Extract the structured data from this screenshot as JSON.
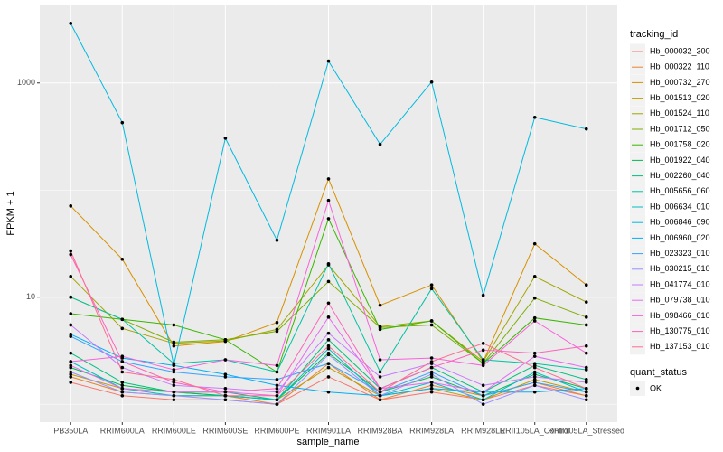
{
  "chart_data": {
    "type": "line",
    "x_label": "sample_name",
    "y_label": "FPKM + 1",
    "categories": [
      "PB350LA",
      "RRIM600LA",
      "RRIM600LE",
      "RRIM600SE",
      "RRIM600PE",
      "RRIM901LA",
      "RRIM928BA",
      "RRIM928LA",
      "RRIM928LE",
      "RRII105LA_Control",
      "RRII105LA_Stressed"
    ],
    "ylim": [
      0.68,
      5400
    ],
    "yticks": [
      10,
      1000
    ],
    "log_y": true,
    "grid": true,
    "legend_title": "tracking_id",
    "series": [
      {
        "name": "Hb_000032_300",
        "color": "#F8766D",
        "values": [
          1.6,
          1.2,
          1.1,
          1.1,
          1.0,
          1.8,
          1.1,
          1.3,
          1.1,
          1.5,
          1.2
        ]
      },
      {
        "name": "Hb_000322_110",
        "color": "#EA8331",
        "values": [
          1.8,
          1.3,
          1.2,
          1.2,
          1.0,
          2.4,
          1.1,
          1.5,
          1.2,
          1.6,
          1.2
        ]
      },
      {
        "name": "Hb_000732_270",
        "color": "#D89000",
        "values": [
          71,
          22.6,
          3.5,
          3.86,
          5.8,
          127,
          8.4,
          13,
          2.5,
          31.5,
          13
        ]
      },
      {
        "name": "Hb_001513_020",
        "color": "#C09B00",
        "values": [
          1.9,
          1.4,
          1.3,
          1.2,
          1.1,
          2.2,
          1.2,
          1.4,
          1.1,
          1.7,
          1.3
        ]
      },
      {
        "name": "Hb_001524_110",
        "color": "#A3A500",
        "values": [
          15.6,
          5.1,
          3.7,
          3.9,
          5.0,
          20,
          5.3,
          6.0,
          2.5,
          15.6,
          9.0
        ]
      },
      {
        "name": "Hb_001712_050",
        "color": "#7CAE00",
        "values": [
          10,
          6.2,
          3.8,
          4.0,
          4.8,
          14,
          5.2,
          5.5,
          2.4,
          9.8,
          6.5
        ]
      },
      {
        "name": "Hb_001758_020",
        "color": "#39B600",
        "values": [
          7,
          6.2,
          5.5,
          4.0,
          2.0,
          54,
          5.0,
          6.0,
          2.4,
          6.4,
          5.5
        ]
      },
      {
        "name": "Hb_001922_040",
        "color": "#00BB4E",
        "values": [
          2.2,
          1.5,
          1.3,
          1.2,
          1.1,
          3.0,
          1.3,
          1.8,
          1.2,
          1.9,
          1.4
        ]
      },
      {
        "name": "Hb_002260_040",
        "color": "#00BF7D",
        "values": [
          3.0,
          1.6,
          1.3,
          1.3,
          1.1,
          4.0,
          1.4,
          2.2,
          1.3,
          2.3,
          1.7
        ]
      },
      {
        "name": "Hb_005656_060",
        "color": "#00C1A3",
        "values": [
          10,
          6.2,
          2.4,
          2.6,
          2.0,
          20.5,
          2.0,
          12,
          2.6,
          2.4,
          2.1
        ]
      },
      {
        "name": "Hb_006634_010",
        "color": "#00BFC4",
        "values": [
          2.5,
          1.4,
          1.2,
          1.2,
          1.1,
          3.3,
          1.2,
          1.6,
          1.1,
          2.0,
          1.3
        ]
      },
      {
        "name": "Hb_006846_090",
        "color": "#00BAE0",
        "values": [
          3600,
          426,
          2.33,
          305,
          34,
          1600,
          267,
          1020,
          10.4,
          478,
          372
        ]
      },
      {
        "name": "Hb_006960_020",
        "color": "#00B0F6",
        "values": [
          4.5,
          2.7,
          2.3,
          1.9,
          1.5,
          1.3,
          1.2,
          1.4,
          1.3,
          1.3,
          1.4
        ]
      },
      {
        "name": "Hb_023323_010",
        "color": "#35A2FF",
        "values": [
          4.3,
          2.5,
          2.0,
          1.8,
          1.7,
          2.4,
          1.3,
          2.0,
          1.2,
          1.6,
          1.3
        ]
      },
      {
        "name": "Hb_030215_010",
        "color": "#9590FF",
        "values": [
          2.0,
          1.3,
          1.2,
          1.1,
          1.0,
          2.9,
          1.2,
          1.9,
          1.0,
          1.5,
          1.1
        ]
      },
      {
        "name": "Hb_041774_010",
        "color": "#C77CFF",
        "values": [
          5.5,
          2.2,
          1.5,
          1.4,
          1.3,
          4.6,
          1.8,
          2.4,
          1.5,
          1.8,
          1.6
        ]
      },
      {
        "name": "Hb_079738_010",
        "color": "#E76BF3",
        "values": [
          2.3,
          1.4,
          1.3,
          1.3,
          1.2,
          6.5,
          1.4,
          1.6,
          1.3,
          2.8,
          2.2
        ]
      },
      {
        "name": "Hb_098466_010",
        "color": "#FA62DB",
        "values": [
          2.5,
          2.8,
          2.1,
          2.6,
          2.3,
          80,
          2.6,
          2.7,
          2.3,
          6,
          3
        ]
      },
      {
        "name": "Hb_130775_010",
        "color": "#FF62BC",
        "values": [
          25,
          2.5,
          1.6,
          1.3,
          1.4,
          8.8,
          1.4,
          2.2,
          3.2,
          3.0,
          3.5
        ]
      },
      {
        "name": "Hb_137153_010",
        "color": "#FF6C91",
        "values": [
          27,
          2.0,
          1.7,
          1.2,
          1.2,
          3.5,
          1.3,
          2.5,
          3.7,
          2.2,
          1.4
        ]
      }
    ],
    "point_legend_title": "quant_status",
    "point_legend_label": "OK"
  }
}
